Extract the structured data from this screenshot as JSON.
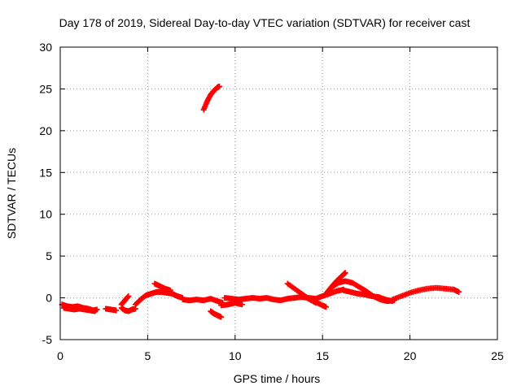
{
  "chart_data": {
    "type": "scatter",
    "title": "Day 178 of 2019, Sidereal Day-to-day VTEC variation (SDTVAR) for receiver cast",
    "xlabel": "GPS time / hours",
    "ylabel": "SDTVAR / TECUs",
    "xlim": [
      0,
      25
    ],
    "ylim": [
      -5,
      30
    ],
    "grid": true,
    "xticks": [
      0,
      5,
      10,
      15,
      20,
      25
    ],
    "yticks": [
      -5,
      0,
      5,
      10,
      15,
      20,
      25,
      30
    ],
    "series": [
      {
        "name": "SDTVAR",
        "color": "#ff0000",
        "marker": "plus",
        "segments": [
          {
            "x": [
              0.1,
              0.4,
              0.7,
              1.0,
              1.3,
              1.6,
              1.9,
              2.1
            ],
            "y": [
              -0.8,
              -1.0,
              -1.1,
              -1.0,
              -1.2,
              -1.3,
              -1.5,
              -1.4
            ]
          },
          {
            "x": [
              0.2,
              0.5,
              0.8,
              1.1,
              1.4,
              1.7,
              2.0
            ],
            "y": [
              -1.2,
              -1.3,
              -1.4,
              -1.3,
              -1.4,
              -1.5,
              -1.6
            ]
          },
          {
            "x": [
              2.6,
              2.9,
              3.2
            ],
            "y": [
              -1.3,
              -1.4,
              -1.5
            ]
          },
          {
            "x": [
              3.5,
              3.7,
              3.9,
              4.1,
              4.3
            ],
            "y": [
              -1.2,
              -1.5,
              -1.6,
              -1.4,
              -1.3
            ]
          },
          {
            "x": [
              3.5,
              3.7,
              3.9
            ],
            "y": [
              -0.8,
              -0.3,
              0.2
            ]
          },
          {
            "x": [
              4.3,
              4.6,
              4.9,
              5.2,
              5.5,
              5.8,
              6.1,
              6.4,
              6.7,
              7.0
            ],
            "y": [
              -0.8,
              -0.2,
              0.3,
              0.5,
              0.7,
              0.7,
              0.6,
              0.5,
              0.2,
              0.0
            ]
          },
          {
            "x": [
              5.4,
              5.7,
              6.0,
              6.3
            ],
            "y": [
              1.7,
              1.4,
              1.1,
              0.9
            ]
          },
          {
            "x": [
              7.0,
              7.4,
              7.8,
              8.2,
              8.6,
              9.0,
              9.3
            ],
            "y": [
              -0.2,
              -0.3,
              -0.2,
              -0.3,
              -0.1,
              -0.4,
              -0.6
            ]
          },
          {
            "x": [
              8.2,
              8.4,
              8.6,
              8.8,
              9.0,
              9.1
            ],
            "y": [
              22.5,
              23.5,
              24.3,
              24.8,
              25.2,
              25.3
            ]
          },
          {
            "x": [
              8.6,
              8.8,
              9.0,
              9.2
            ],
            "y": [
              -1.6,
              -1.9,
              -2.1,
              -2.3
            ]
          },
          {
            "x": [
              9.2,
              9.6,
              10.0,
              10.4
            ],
            "y": [
              -0.9,
              -0.8,
              -0.6,
              -0.8
            ]
          },
          {
            "x": [
              9.4,
              9.8,
              10.2,
              10.6,
              11.0,
              11.4,
              11.8,
              12.2,
              12.6,
              13.0,
              13.4,
              13.8,
              14.2,
              14.6,
              15.0,
              15.4,
              15.8,
              16.2
            ],
            "y": [
              0.0,
              -0.1,
              -0.2,
              -0.1,
              0.0,
              -0.1,
              0.0,
              -0.2,
              -0.3,
              -0.1,
              0.0,
              0.1,
              0.0,
              -0.1,
              0.2,
              0.5,
              0.8,
              1.0
            ]
          },
          {
            "x": [
              13.0,
              13.4,
              13.8,
              14.2,
              14.6
            ],
            "y": [
              1.7,
              1.1,
              0.5,
              -0.1,
              -0.6
            ]
          },
          {
            "x": [
              13.8,
              14.2,
              14.6,
              15.0,
              15.2
            ],
            "y": [
              0.3,
              -0.1,
              -0.5,
              -0.9,
              -1.1
            ]
          },
          {
            "x": [
              15.2,
              15.5,
              15.8,
              16.1,
              16.3
            ],
            "y": [
              0.5,
              1.3,
              2.0,
              2.6,
              3.0
            ]
          },
          {
            "x": [
              15.5,
              15.9,
              16.3,
              16.7,
              17.1,
              17.5,
              17.9,
              18.3,
              18.7,
              19.1
            ],
            "y": [
              1.2,
              1.8,
              2.0,
              1.8,
              1.3,
              0.8,
              0.2,
              -0.2,
              -0.4,
              -0.3
            ]
          },
          {
            "x": [
              16.2,
              16.6,
              17.0,
              17.4,
              17.8,
              18.2,
              18.6,
              19.0
            ],
            "y": [
              0.9,
              0.7,
              0.5,
              0.4,
              0.2,
              0.1,
              -0.2,
              -0.4
            ]
          },
          {
            "x": [
              19.0,
              19.5,
              20.0,
              20.5,
              21.0,
              21.5,
              22.0,
              22.5,
              22.8
            ],
            "y": [
              -0.2,
              0.2,
              0.6,
              0.9,
              1.1,
              1.2,
              1.1,
              1.0,
              0.7
            ]
          }
        ]
      }
    ]
  }
}
